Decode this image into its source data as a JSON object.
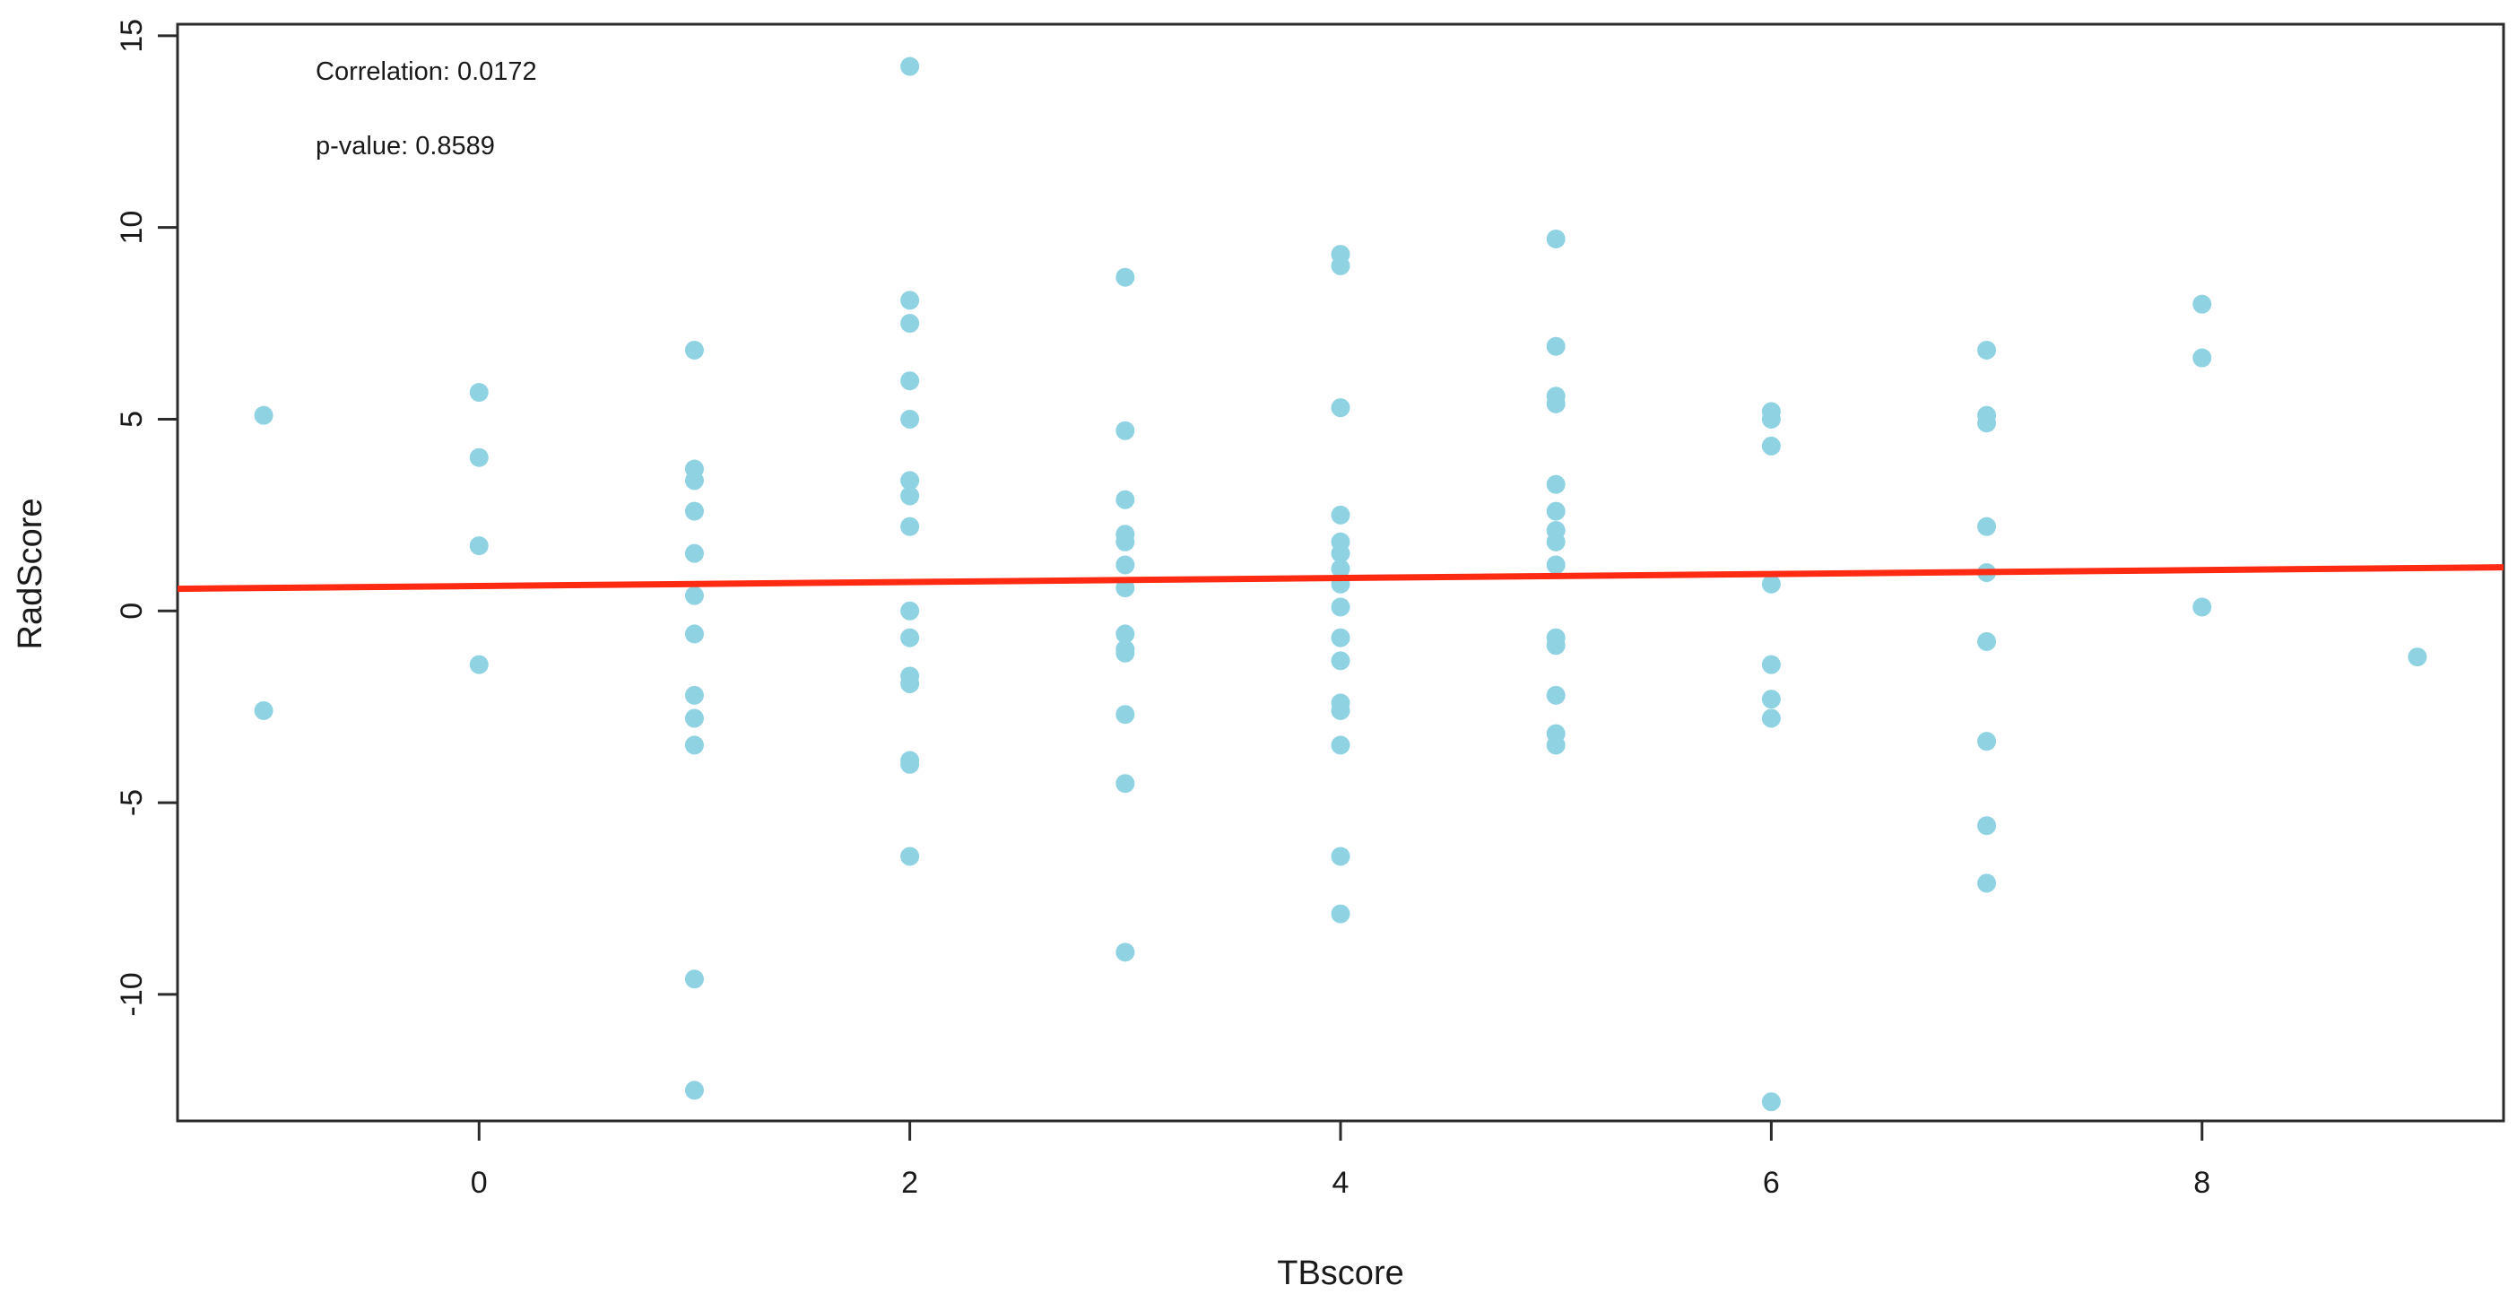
{
  "chart_data": {
    "type": "scatter",
    "title": "",
    "xlabel": "TBscore",
    "ylabel": "RadScore",
    "xlim": [
      -1.4,
      9.4
    ],
    "ylim": [
      -13.3,
      15.3
    ],
    "x_ticks": [
      0,
      2,
      4,
      6,
      8
    ],
    "y_ticks": [
      -10,
      -5,
      0,
      5,
      10,
      15
    ],
    "grid": false,
    "legend": "none",
    "point_color": "#8fd3e3",
    "line_color": "#ff2a12",
    "annotations": [
      "Correlation: 0.0172",
      "p-value: 0.8589"
    ],
    "regression_line": {
      "intercept": 0.65,
      "slope": 0.052
    },
    "points": [
      {
        "x": -1,
        "y": 5.1
      },
      {
        "x": -1,
        "y": -2.6
      },
      {
        "x": 0,
        "y": 5.7
      },
      {
        "x": 0,
        "y": 4.0
      },
      {
        "x": 0,
        "y": 1.7
      },
      {
        "x": 0,
        "y": -1.4
      },
      {
        "x": 1,
        "y": 6.8
      },
      {
        "x": 1,
        "y": 3.7
      },
      {
        "x": 1,
        "y": 3.4
      },
      {
        "x": 1,
        "y": 2.6
      },
      {
        "x": 1,
        "y": 1.5
      },
      {
        "x": 1,
        "y": 0.4
      },
      {
        "x": 1,
        "y": -0.6
      },
      {
        "x": 1,
        "y": -2.2
      },
      {
        "x": 1,
        "y": -2.8
      },
      {
        "x": 1,
        "y": -3.5
      },
      {
        "x": 1,
        "y": -9.6
      },
      {
        "x": 1,
        "y": -12.5
      },
      {
        "x": 2,
        "y": 14.2
      },
      {
        "x": 2,
        "y": 8.1
      },
      {
        "x": 2,
        "y": 7.5
      },
      {
        "x": 2,
        "y": 6.0
      },
      {
        "x": 2,
        "y": 5.0
      },
      {
        "x": 2,
        "y": 3.4
      },
      {
        "x": 2,
        "y": 3.0
      },
      {
        "x": 2,
        "y": 2.2
      },
      {
        "x": 2,
        "y": 0.0
      },
      {
        "x": 2,
        "y": -0.7
      },
      {
        "x": 2,
        "y": -1.7
      },
      {
        "x": 2,
        "y": -1.9
      },
      {
        "x": 2,
        "y": -3.9
      },
      {
        "x": 2,
        "y": -4.0
      },
      {
        "x": 2,
        "y": -6.4
      },
      {
        "x": 3,
        "y": 8.7
      },
      {
        "x": 3,
        "y": 4.7
      },
      {
        "x": 3,
        "y": 2.9
      },
      {
        "x": 3,
        "y": 2.0
      },
      {
        "x": 3,
        "y": 1.8
      },
      {
        "x": 3,
        "y": 1.2
      },
      {
        "x": 3,
        "y": 0.6
      },
      {
        "x": 3,
        "y": -0.6
      },
      {
        "x": 3,
        "y": -1.0
      },
      {
        "x": 3,
        "y": -1.1
      },
      {
        "x": 3,
        "y": -2.7
      },
      {
        "x": 3,
        "y": -4.5
      },
      {
        "x": 3,
        "y": -8.9
      },
      {
        "x": 4,
        "y": 9.3
      },
      {
        "x": 4,
        "y": 9.0
      },
      {
        "x": 4,
        "y": 5.3
      },
      {
        "x": 4,
        "y": 2.5
      },
      {
        "x": 4,
        "y": 1.8
      },
      {
        "x": 4,
        "y": 1.5
      },
      {
        "x": 4,
        "y": 1.1
      },
      {
        "x": 4,
        "y": 0.7
      },
      {
        "x": 4,
        "y": 0.1
      },
      {
        "x": 4,
        "y": -0.7
      },
      {
        "x": 4,
        "y": -1.3
      },
      {
        "x": 4,
        "y": -2.4
      },
      {
        "x": 4,
        "y": -2.6
      },
      {
        "x": 4,
        "y": -3.5
      },
      {
        "x": 4,
        "y": -6.4
      },
      {
        "x": 4,
        "y": -7.9
      },
      {
        "x": 5,
        "y": 9.7
      },
      {
        "x": 5,
        "y": 6.9
      },
      {
        "x": 5,
        "y": 5.6
      },
      {
        "x": 5,
        "y": 5.4
      },
      {
        "x": 5,
        "y": 3.3
      },
      {
        "x": 5,
        "y": 2.6
      },
      {
        "x": 5,
        "y": 2.1
      },
      {
        "x": 5,
        "y": 1.8
      },
      {
        "x": 5,
        "y": 1.2
      },
      {
        "x": 5,
        "y": -0.7
      },
      {
        "x": 5,
        "y": -0.9
      },
      {
        "x": 5,
        "y": -2.2
      },
      {
        "x": 5,
        "y": -3.2
      },
      {
        "x": 5,
        "y": -3.5
      },
      {
        "x": 6,
        "y": 5.2
      },
      {
        "x": 6,
        "y": 5.0
      },
      {
        "x": 6,
        "y": 4.3
      },
      {
        "x": 6,
        "y": 0.7
      },
      {
        "x": 6,
        "y": -1.4
      },
      {
        "x": 6,
        "y": -2.3
      },
      {
        "x": 6,
        "y": -2.8
      },
      {
        "x": 6,
        "y": -12.8
      },
      {
        "x": 7,
        "y": 6.8
      },
      {
        "x": 7,
        "y": 5.1
      },
      {
        "x": 7,
        "y": 4.9
      },
      {
        "x": 7,
        "y": 2.2
      },
      {
        "x": 7,
        "y": 1.0
      },
      {
        "x": 7,
        "y": -0.8
      },
      {
        "x": 7,
        "y": -3.4
      },
      {
        "x": 7,
        "y": -5.6
      },
      {
        "x": 7,
        "y": -7.1
      },
      {
        "x": 8,
        "y": 8.0
      },
      {
        "x": 8,
        "y": 6.6
      },
      {
        "x": 8,
        "y": 0.1
      },
      {
        "x": 9,
        "y": -1.2
      }
    ]
  }
}
